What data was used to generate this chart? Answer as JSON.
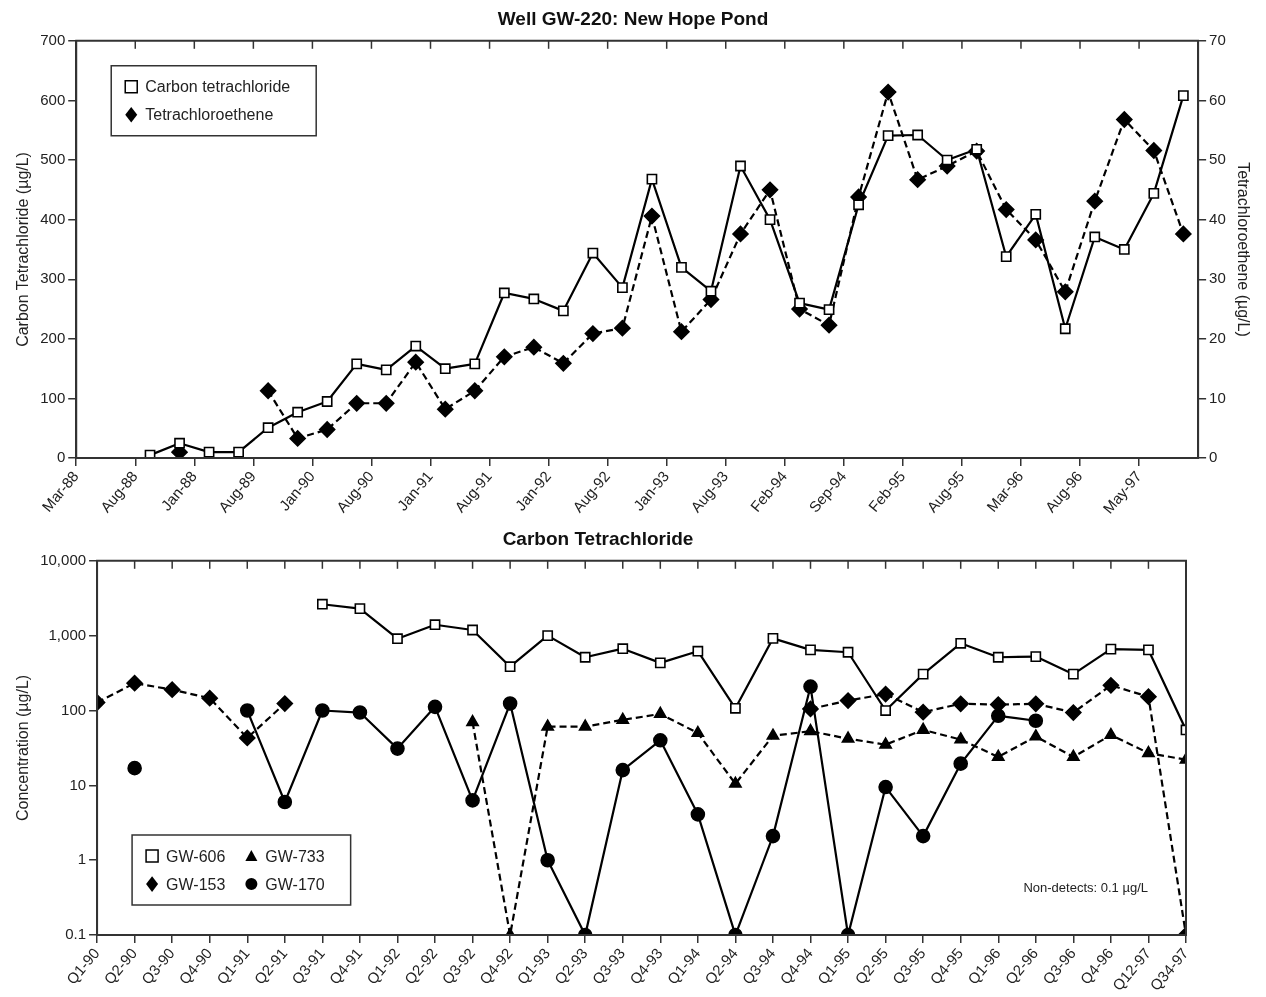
{
  "chart_data": [
    {
      "type": "line",
      "title": "Well GW-220: New Hope Pond",
      "ylabel": "Carbon Tetrachloride (µg/L)",
      "y2label": "Tetrachloroethene (µg/L)",
      "categories": [
        "Mar-88",
        null,
        null,
        null,
        "Aug-88",
        null,
        null,
        null,
        "Jan-88",
        null,
        null,
        null,
        "Aug-89",
        null,
        null,
        null,
        "Jan-90",
        null,
        null,
        null,
        "Aug-90",
        null,
        null,
        null,
        "Jan-91",
        null,
        null,
        null,
        "Aug-91",
        null,
        null,
        null,
        "Jan-92",
        null,
        null,
        null,
        "Aug-92",
        null,
        null,
        null,
        "Jan-93",
        null,
        null,
        null,
        "Aug-93",
        null,
        null,
        null,
        "Feb-94",
        null,
        null,
        null,
        "Sep-94",
        null,
        null,
        null,
        "Feb-95",
        null,
        null,
        null,
        "Aug-95",
        null,
        null,
        null,
        "Mar-96",
        null,
        null,
        null,
        "Aug-96",
        null,
        null,
        null,
        "May-97",
        null,
        null,
        null,
        null
      ],
      "series": [
        {
          "name": "Carbon tetrachloride",
          "color": "#000000",
          "marker": "square",
          "line_style": "solid",
          "values": [
            null,
            null,
            null,
            null,
            null,
            5,
            null,
            25,
            null,
            10,
            null,
            10,
            null,
            51,
            null,
            77,
            null,
            95,
            null,
            158,
            null,
            148,
            null,
            188,
            null,
            150,
            null,
            158,
            null,
            277,
            null,
            267,
            null,
            247,
            null,
            344,
            null,
            286,
            null,
            468,
            null,
            320,
            null,
            280,
            null,
            490,
            null,
            400,
            null,
            260,
            null,
            249,
            null,
            425,
            null,
            541,
            null,
            542,
            null,
            500,
            null,
            518,
            null,
            338,
            null,
            409,
            null,
            217,
            null,
            371,
            null,
            350,
            null,
            444,
            null,
            608,
            null
          ]
        },
        {
          "name": "Tetrachloroethene",
          "color": "#000000",
          "marker": "diamond",
          "line_style": "dashed",
          "axis": "y2",
          "values": [
            null,
            null,
            null,
            null,
            null,
            null,
            null,
            1,
            null,
            null,
            null,
            null,
            null,
            11.3,
            null,
            3.3,
            null,
            4.8,
            null,
            9.2,
            null,
            9.2,
            null,
            16.1,
            null,
            8.2,
            null,
            11.3,
            null,
            17,
            null,
            18.6,
            null,
            15.9,
            null,
            20.9,
            null,
            21.8,
            null,
            40.6,
            null,
            21.2,
            null,
            26.6,
            null,
            37.6,
            null,
            45,
            null,
            25,
            null,
            22.3,
            null,
            43.8,
            null,
            61.4,
            null,
            46.7,
            null,
            49,
            null,
            51.5,
            null,
            41.7,
            null,
            36.6,
            null,
            27.9,
            null,
            43.1,
            null,
            56.8,
            null,
            51.6,
            null,
            37.6,
            null
          ]
        }
      ],
      "ylim": [
        0,
        700
      ],
      "yticks": [
        0,
        100,
        200,
        300,
        400,
        500,
        600,
        700
      ],
      "y2lim": [
        0,
        70
      ],
      "y2ticks": [
        0,
        10,
        20,
        30,
        40,
        50,
        60,
        70
      ],
      "grid": false,
      "legend": "top left"
    },
    {
      "type": "line",
      "title": "Carbon Tetrachloride",
      "ylabel": "Concentration (µg/L)",
      "categories": [
        "Q1-90",
        "Q2-90",
        "Q3-90",
        "Q4-90",
        "Q1-91",
        "Q2-91",
        "Q3-91",
        "Q4-91",
        "Q1-92",
        "Q2-92",
        "Q3-92",
        "Q4-92",
        "Q1-93",
        "Q2-93",
        "Q3-93",
        "Q4-93",
        "Q1-94",
        "Q2-94",
        "Q3-94",
        "Q4-94",
        "Q1-95",
        "Q2-95",
        "Q3-95",
        "Q4-95",
        "Q1-96",
        "Q2-96",
        "Q3-96",
        "Q4-96",
        "Q12-97",
        "Q34-97"
      ],
      "series": [
        {
          "name": "GW-606",
          "color": "#000000",
          "marker": "square",
          "line_style": "solid",
          "values": [
            null,
            null,
            null,
            null,
            null,
            null,
            2630,
            2300,
            910,
            1400,
            1190,
            385,
            1000,
            515,
            670,
            433,
            620,
            107,
            920,
            645,
            600,
            100,
            306,
            790,
            515,
            525,
            306,
            660,
            645,
            55
          ]
        },
        {
          "name": "GW-733",
          "color": "#000000",
          "marker": "triangle",
          "line_style": "dashed",
          "values": [
            null,
            null,
            null,
            null,
            null,
            null,
            null,
            null,
            null,
            null,
            70,
            0.1,
            61,
            61,
            75,
            90,
            50,
            10.5,
            46,
            53,
            42,
            35,
            55,
            41,
            24,
            45,
            24,
            47,
            27,
            22
          ]
        },
        {
          "name": "GW-153",
          "color": "#000000",
          "marker": "diamond",
          "line_style": "dashed",
          "values": [
            128,
            232,
            190,
            146,
            43,
            124,
            null,
            null,
            null,
            null,
            null,
            null,
            null,
            null,
            null,
            null,
            null,
            null,
            null,
            105,
            136,
            166,
            95,
            123,
            120,
            123,
            94,
            217,
            153,
            0.1
          ]
        },
        {
          "name": "GW-170",
          "color": "#000000",
          "marker": "circle",
          "line_style": "solid",
          "values": [
            null,
            17,
            null,
            null,
            100,
            6,
            100,
            94,
            31,
            112,
            6.3,
            124,
            1,
            0.1,
            16,
            40,
            4.1,
            0.1,
            2.1,
            209,
            0.1,
            9.5,
            2.1,
            19.5,
            85,
            73,
            null,
            null,
            null,
            null
          ]
        }
      ],
      "log": "y",
      "ylim": [
        0.1,
        10000
      ],
      "yticks": [
        0.1,
        1,
        10,
        100,
        {
          "value": 1000,
          "label": "1,000"
        },
        {
          "value": 10000,
          "label": "10,000"
        }
      ],
      "annotations": [
        "Non-detects: 0.1 µg/L"
      ],
      "grid": false,
      "legend": "bottom left"
    }
  ]
}
